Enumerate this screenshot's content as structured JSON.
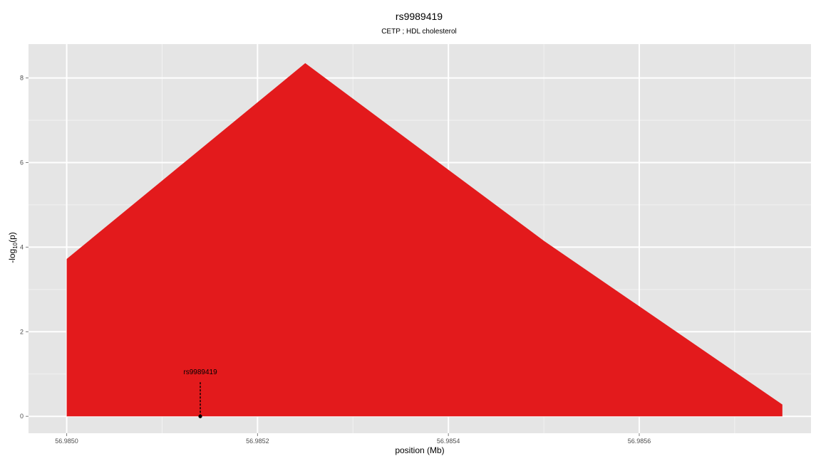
{
  "chart_data": {
    "type": "area",
    "title": "rs9989419",
    "subtitle": "CETP ; HDL cholesterol",
    "xlabel": "position (Mb)",
    "ylabel_main": "-log",
    "ylabel_sub": "10",
    "ylabel_tail": "(p)",
    "xlim": [
      56.98496,
      56.98578
    ],
    "ylim": [
      -0.4,
      8.8
    ],
    "x_ticks": [
      56.985,
      56.9852,
      56.9854,
      56.9856
    ],
    "x_tick_labels": [
      "56.9850",
      "56.9852",
      "56.9854",
      "56.9856"
    ],
    "x_minor_ticks": [
      56.9851,
      56.9853,
      56.9855,
      56.9857
    ],
    "y_ticks": [
      0,
      2,
      4,
      6,
      8
    ],
    "y_tick_labels": [
      "0",
      "2",
      "4",
      "6",
      "8"
    ],
    "y_minor_ticks": [
      1,
      3,
      5,
      7
    ],
    "grid": true,
    "series": [
      {
        "color": "#e31a1c",
        "x": [
          56.985,
          56.98525,
          56.9855,
          56.98575
        ],
        "y": [
          3.72,
          8.35,
          4.15,
          0.28
        ]
      }
    ],
    "annotation": {
      "label": "rs9989419",
      "x": 56.98514,
      "y": 0,
      "color": "#000000"
    },
    "background_color": "#e5e5e5"
  }
}
